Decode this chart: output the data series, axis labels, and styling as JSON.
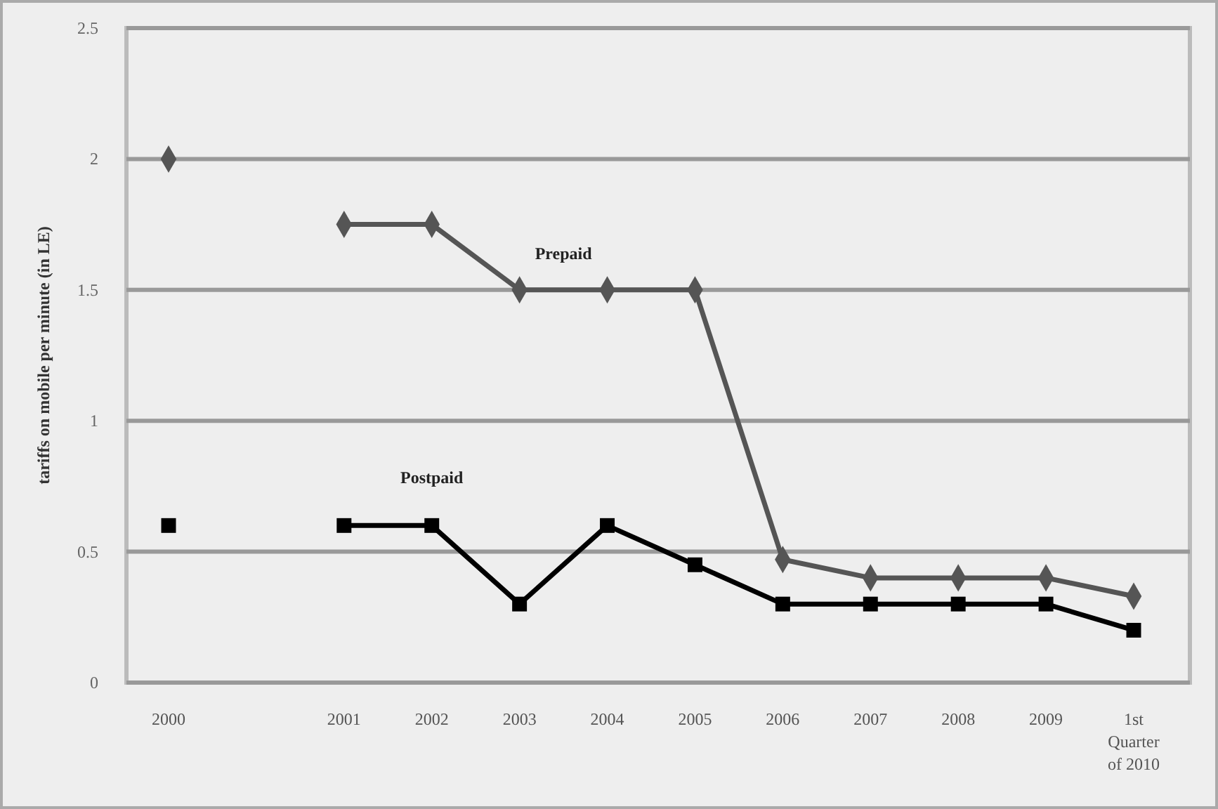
{
  "chart_data": {
    "type": "line",
    "ylabel": "tariffs on mobile per minute (in LE)",
    "categories": [
      "2000",
      null,
      "2001",
      "2002",
      "2003",
      "2004",
      "2005",
      "2006",
      "2007",
      "2008",
      "2009",
      "1st Quarter of 2010"
    ],
    "series": [
      {
        "name": "Prepaid",
        "color": "#555555",
        "marker": "diamond",
        "values": [
          2,
          null,
          1.75,
          1.75,
          1.5,
          1.5,
          1.5,
          0.47,
          0.4,
          0.4,
          0.4,
          0.33
        ]
      },
      {
        "name": "Postpaid",
        "color": "#000000",
        "marker": "square",
        "values": [
          0.6,
          null,
          0.6,
          0.6,
          0.3,
          0.6,
          0.45,
          0.3,
          0.3,
          0.3,
          0.3,
          0.2
        ]
      }
    ],
    "ylim": [
      0,
      2.5
    ],
    "yticks": [
      0,
      0.5,
      1,
      1.5,
      2,
      2.5
    ],
    "grid": "y"
  }
}
